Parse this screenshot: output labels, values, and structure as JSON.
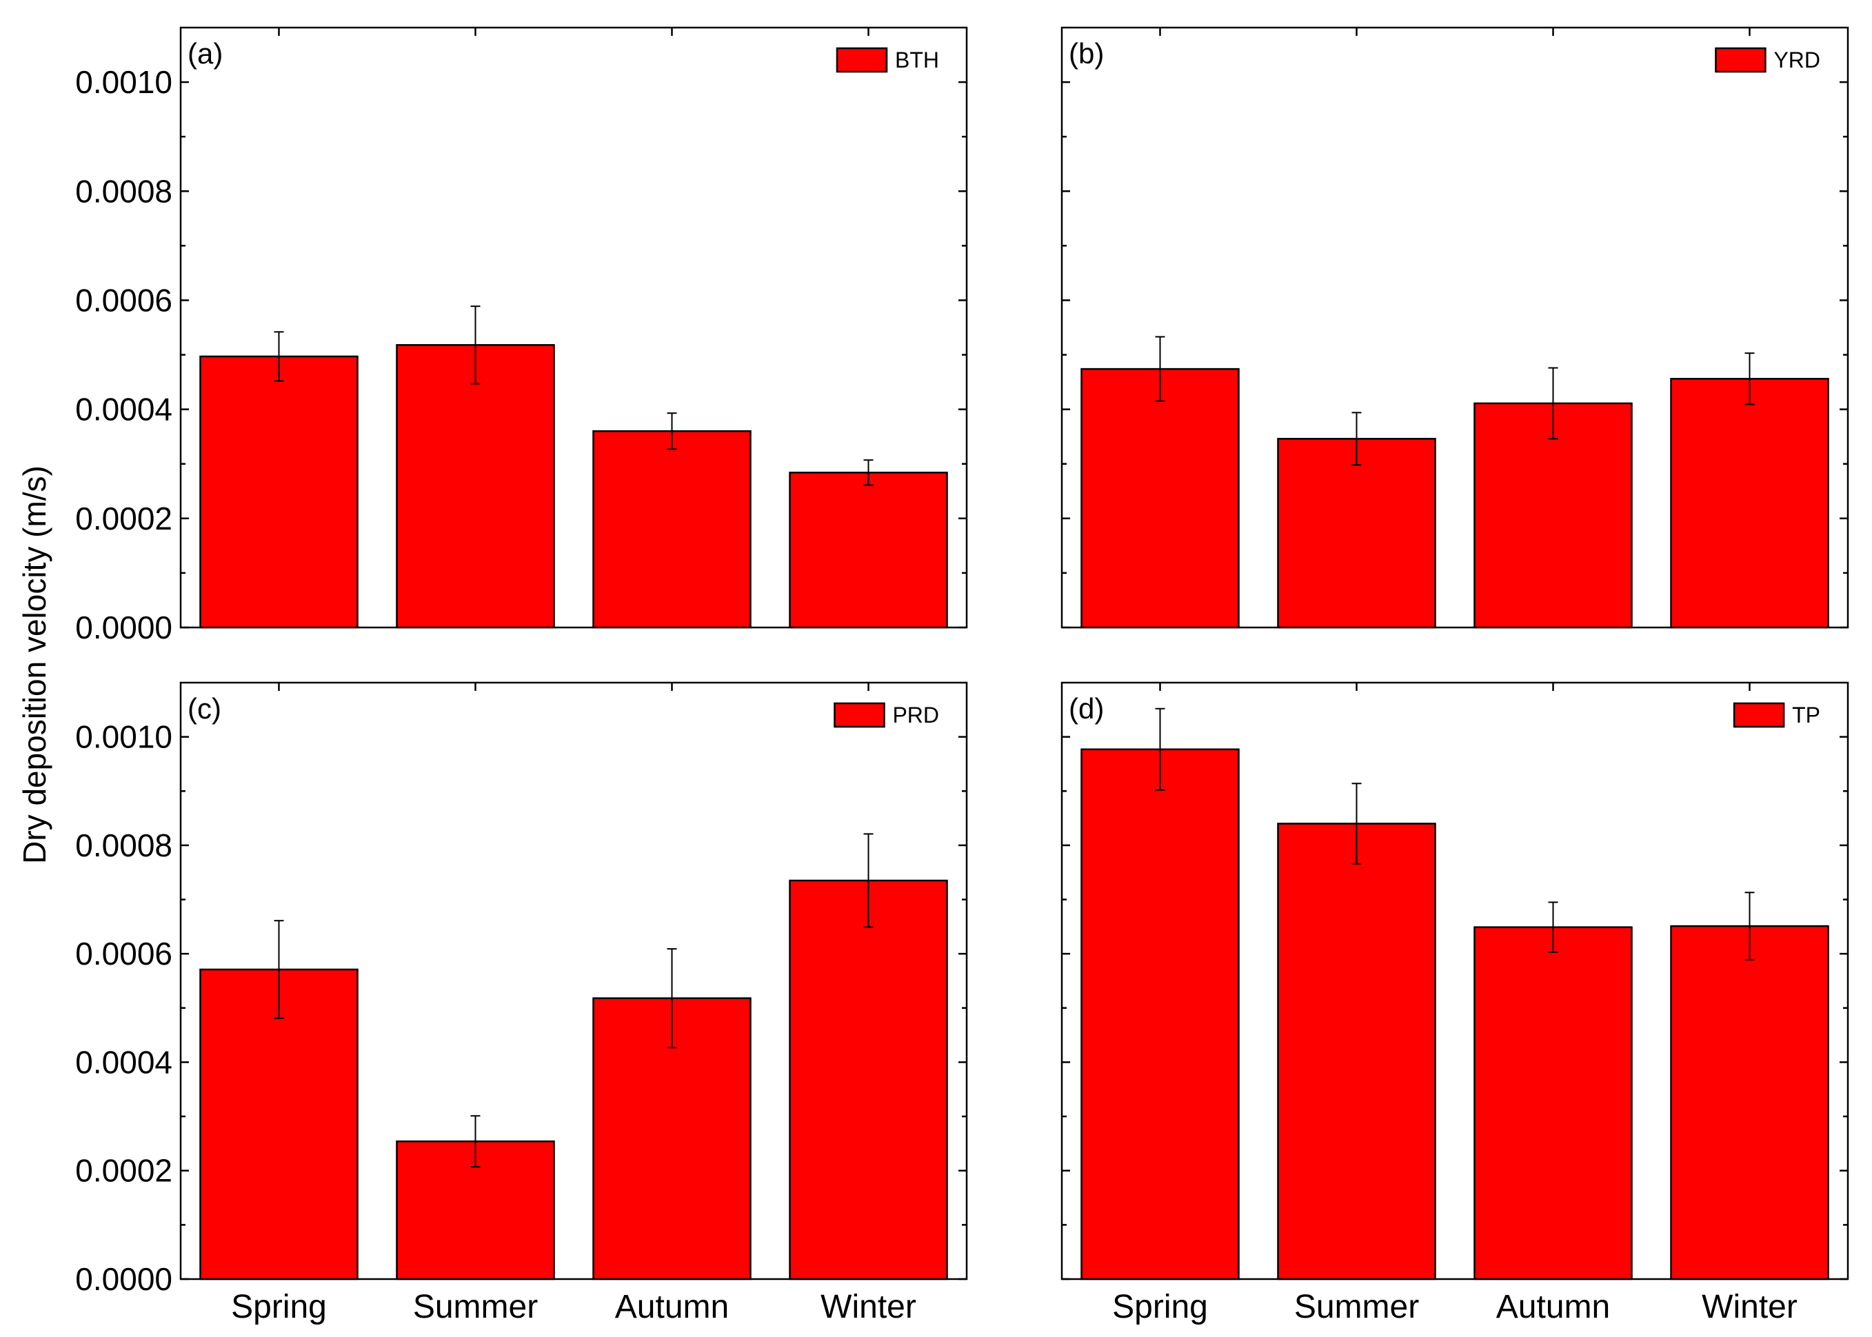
{
  "figure": {
    "ylabel": "Dry deposition velocity (m/s)"
  },
  "chart_data": [
    {
      "type": "bar",
      "panel_label": "(a)",
      "categories": [
        "Spring",
        "Summer",
        "Autumn",
        "Winter"
      ],
      "series": [
        {
          "name": "BTH",
          "values": [
            0.000497,
            0.000518,
            0.00036,
            0.000284
          ],
          "errors": [
            4.5e-05,
            7.1e-05,
            3.3e-05,
            2.3e-05
          ]
        }
      ],
      "ylim": [
        0,
        0.0011
      ],
      "yticks": [
        "0.0000",
        "0.0002",
        "0.0004",
        "0.0006",
        "0.0008",
        "0.0010"
      ],
      "legend_position": "top-right",
      "color": "#ff0000",
      "show_x_tick_labels": false,
      "show_y_tick_labels": true
    },
    {
      "type": "bar",
      "panel_label": "(b)",
      "categories": [
        "Spring",
        "Summer",
        "Autumn",
        "Winter"
      ],
      "series": [
        {
          "name": "YRD",
          "values": [
            0.000474,
            0.000346,
            0.000411,
            0.000456
          ],
          "errors": [
            5.9e-05,
            4.8e-05,
            6.5e-05,
            4.7e-05
          ]
        }
      ],
      "ylim": [
        0,
        0.0011
      ],
      "yticks": [
        "0.0000",
        "0.0002",
        "0.0004",
        "0.0006",
        "0.0008",
        "0.0010"
      ],
      "legend_position": "top-right",
      "color": "#ff0000",
      "show_x_tick_labels": false,
      "show_y_tick_labels": false
    },
    {
      "type": "bar",
      "panel_label": "(c)",
      "categories": [
        "Spring",
        "Summer",
        "Autumn",
        "Winter"
      ],
      "series": [
        {
          "name": "PRD",
          "values": [
            0.000571,
            0.000254,
            0.000518,
            0.000735
          ],
          "errors": [
            9e-05,
            4.7e-05,
            9.1e-05,
            8.6e-05
          ]
        }
      ],
      "ylim": [
        0,
        0.0011
      ],
      "yticks": [
        "0.0000",
        "0.0002",
        "0.0004",
        "0.0006",
        "0.0008",
        "0.0010"
      ],
      "legend_position": "top-right",
      "color": "#ff0000",
      "show_x_tick_labels": true,
      "show_y_tick_labels": true
    },
    {
      "type": "bar",
      "panel_label": "(d)",
      "categories": [
        "Spring",
        "Summer",
        "Autumn",
        "Winter"
      ],
      "series": [
        {
          "name": "TP",
          "values": [
            0.000977,
            0.00084,
            0.000649,
            0.000651
          ],
          "errors": [
            7.5e-05,
            7.4e-05,
            4.6e-05,
            6.2e-05
          ]
        }
      ],
      "ylim": [
        0,
        0.0011
      ],
      "yticks": [
        "0.0000",
        "0.0002",
        "0.0004",
        "0.0006",
        "0.0008",
        "0.0010"
      ],
      "legend_position": "top-right",
      "color": "#ff0000",
      "show_x_tick_labels": true,
      "show_y_tick_labels": false
    }
  ]
}
